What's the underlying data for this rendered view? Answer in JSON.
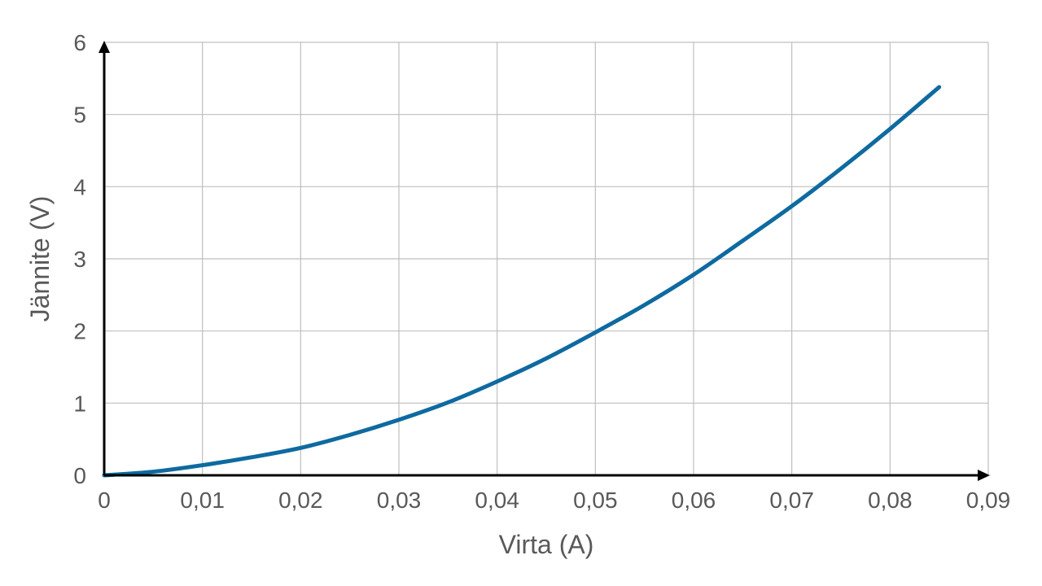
{
  "chart_data": {
    "type": "line",
    "xlabel": "Virta (A)",
    "ylabel": "Jännite (V)",
    "xlim": [
      0,
      0.09
    ],
    "ylim": [
      0,
      6
    ],
    "x_ticks": [
      0,
      0.01,
      0.02,
      0.03,
      0.04,
      0.05,
      0.06,
      0.07,
      0.08,
      0.09
    ],
    "x_tick_labels": [
      "0",
      "0,01",
      "0,02",
      "0,03",
      "0,04",
      "0,05",
      "0,06",
      "0,07",
      "0,08",
      "0,09"
    ],
    "y_ticks": [
      0,
      1,
      2,
      3,
      4,
      5,
      6
    ],
    "y_tick_labels": [
      "0",
      "1",
      "2",
      "3",
      "4",
      "5",
      "6"
    ],
    "grid": true,
    "series": [
      {
        "color": "#0e6aa0",
        "x": [
          0,
          0.005,
          0.01,
          0.015,
          0.02,
          0.025,
          0.03,
          0.035,
          0.04,
          0.045,
          0.05,
          0.055,
          0.06,
          0.065,
          0.07,
          0.075,
          0.08,
          0.085
        ],
        "y": [
          0,
          0.05,
          0.14,
          0.25,
          0.38,
          0.56,
          0.77,
          1.01,
          1.3,
          1.62,
          1.98,
          2.36,
          2.78,
          3.25,
          3.73,
          4.25,
          4.8,
          5.38
        ]
      }
    ]
  }
}
